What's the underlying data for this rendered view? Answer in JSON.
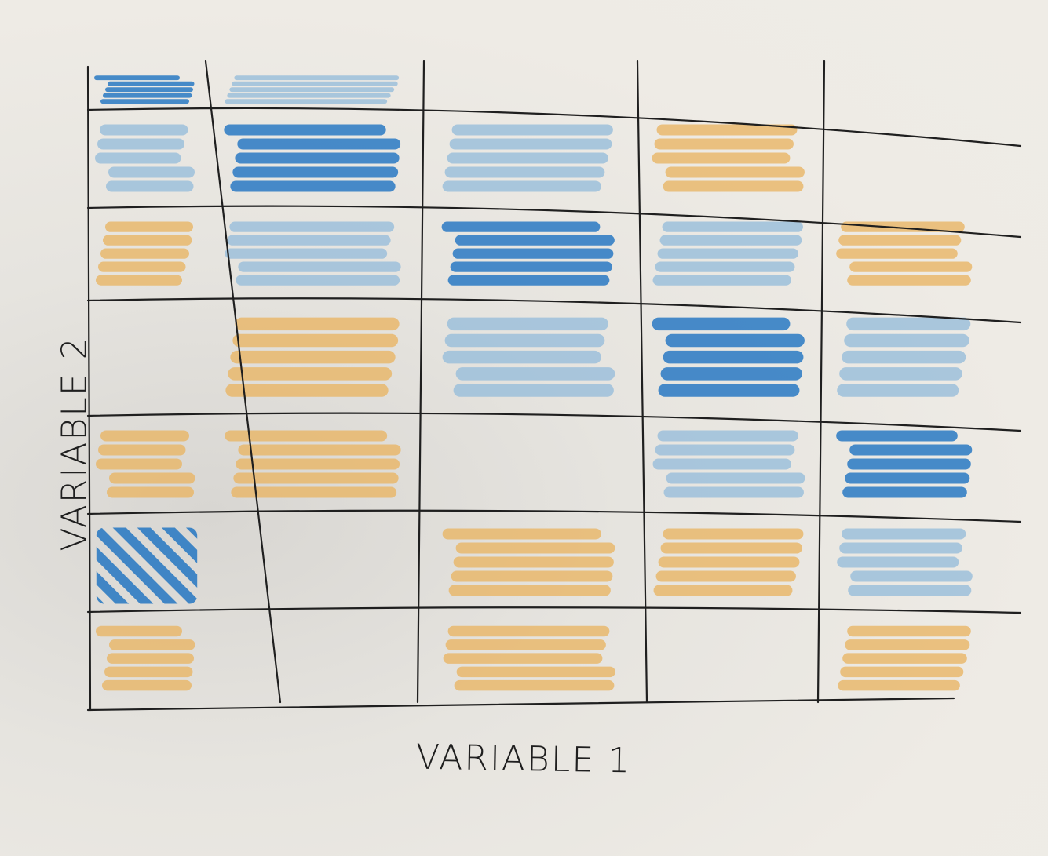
{
  "chart_data": {
    "type": "heatmap",
    "title": "",
    "xlabel": "VARIABLE 1",
    "ylabel": "VARIABLE 2",
    "x_columns": 5,
    "y_rows": 7,
    "legend": "none",
    "grid": true,
    "colors": {
      "dark_blue": "#2f7cc4",
      "light_blue": "#9cbfda",
      "orange": "#e8b565",
      "empty": "none",
      "line": "#1f1f1f"
    },
    "cells": [
      [
        "dark_blue",
        "light_blue",
        "empty",
        "empty",
        "empty"
      ],
      [
        "light_blue",
        "dark_blue",
        "light_blue",
        "orange",
        "empty"
      ],
      [
        "orange",
        "light_blue",
        "dark_blue",
        "light_blue",
        "orange"
      ],
      [
        "empty",
        "orange",
        "light_blue",
        "dark_blue",
        "light_blue"
      ],
      [
        "orange",
        "orange",
        "empty",
        "light_blue",
        "dark_blue"
      ],
      [
        "dark_blue_hatched",
        "empty",
        "orange",
        "orange",
        "light_blue"
      ],
      [
        "orange",
        "empty",
        "orange",
        "empty",
        "orange"
      ]
    ]
  }
}
